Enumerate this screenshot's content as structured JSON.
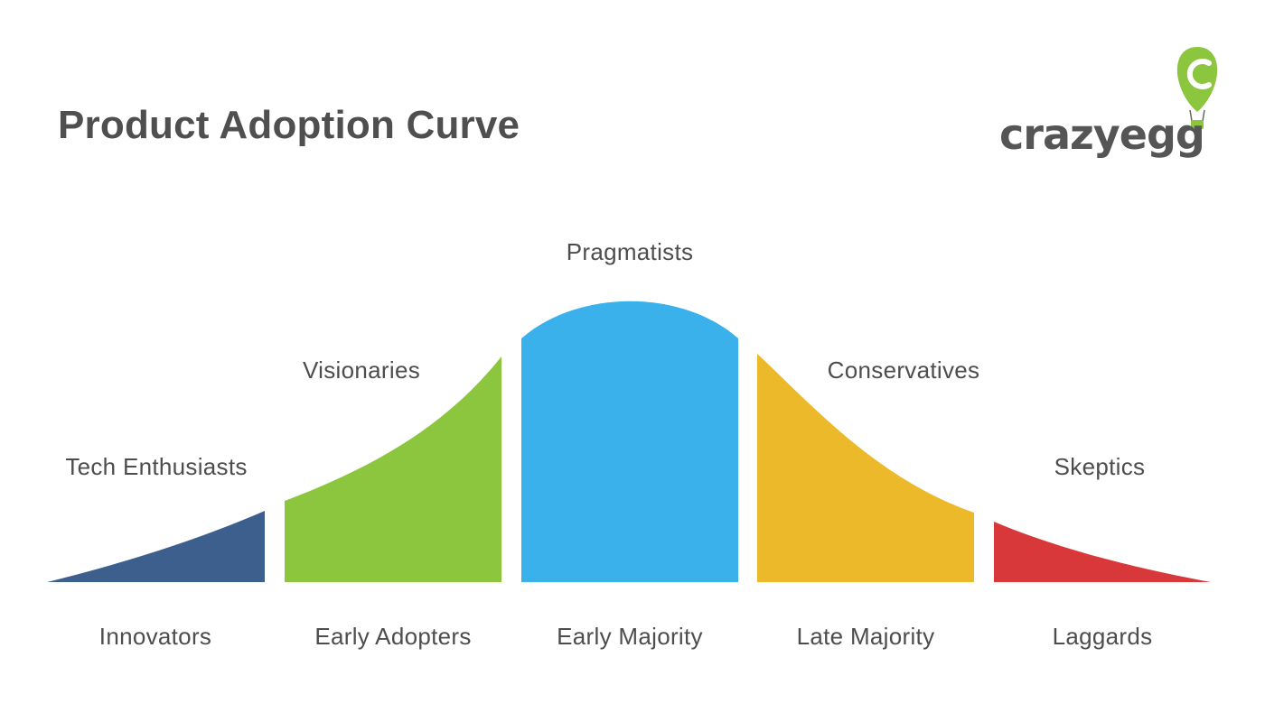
{
  "title": "Product Adoption Curve",
  "logo": {
    "wordmark": "crazyegg",
    "trademark": "™",
    "icon": "hot-air-balloon-icon",
    "colors": {
      "balloon": "#8cc63f",
      "text": "#555555"
    }
  },
  "segments": [
    {
      "category": "Innovators",
      "persona": "Tech Enthusiasts",
      "color": "#3d5f8e"
    },
    {
      "category": "Early Adopters",
      "persona": "Visionaries",
      "color": "#8cc63f"
    },
    {
      "category": "Early Majority",
      "persona": "Pragmatists",
      "color": "#3bb1ec"
    },
    {
      "category": "Late Majority",
      "persona": "Conservatives",
      "color": "#ebb929"
    },
    {
      "category": "Laggards",
      "persona": "Skeptics",
      "color": "#d9383a"
    }
  ]
}
